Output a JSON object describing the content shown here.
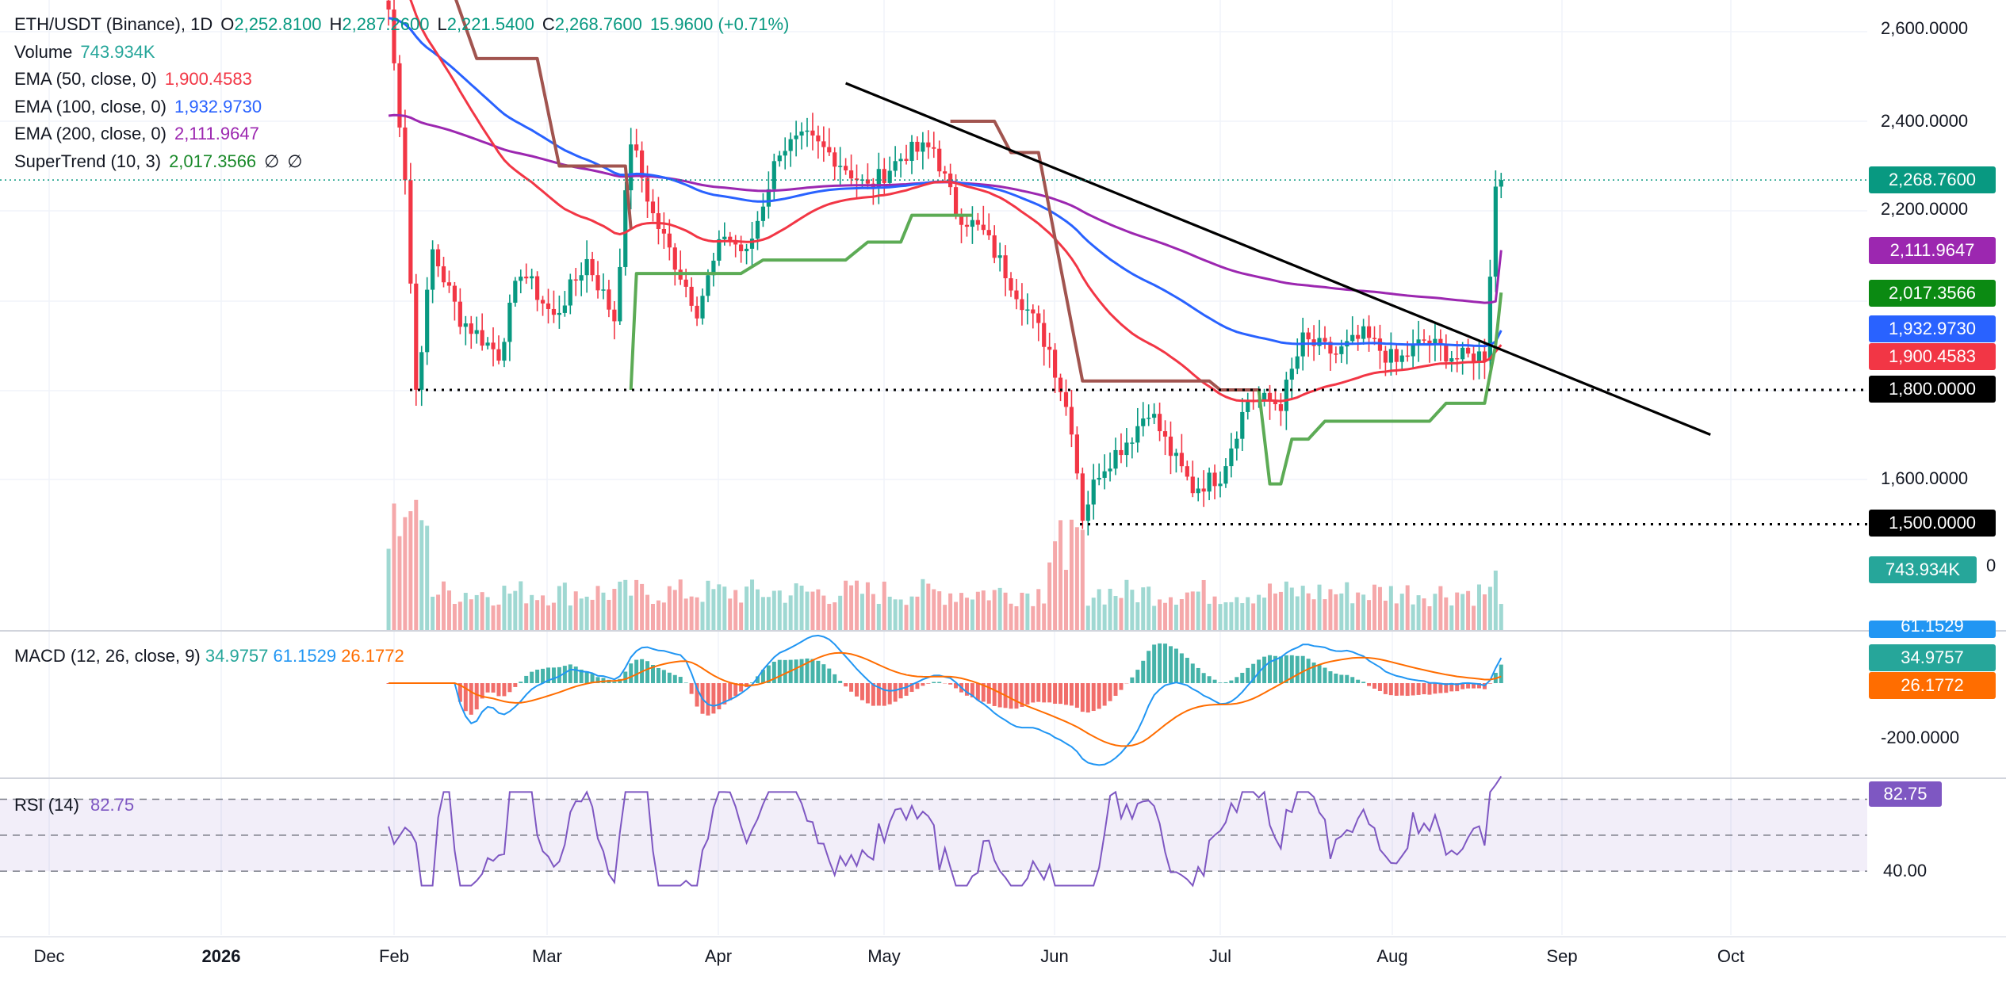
{
  "header": {
    "symbol": "ETH/USDT (Binance), 1D",
    "open_label": "O",
    "open": "2,252.8100",
    "high_label": "H",
    "high": "2,287.2600",
    "low_label": "L",
    "low": "2,221.5400",
    "close_label": "C",
    "close": "2,268.7600",
    "change": "15.9600 (+0.71%)"
  },
  "indicators": {
    "volume": {
      "label": "Volume",
      "value": "743.934K"
    },
    "ema50": {
      "label": "EMA (50, close, 0)",
      "value": "1,900.4583",
      "color": "#f23645"
    },
    "ema100": {
      "label": "EMA (100, close, 0)",
      "value": "1,932.9730",
      "color": "#2962ff"
    },
    "ema200": {
      "label": "EMA (200, close, 0)",
      "value": "2,111.9647",
      "color": "#9c27b0"
    },
    "supertrend": {
      "label": "SuperTrend (10, 3)",
      "value": "2,017.3566",
      "null1": "∅",
      "null2": "∅",
      "color": "#388e3c"
    },
    "macd": {
      "label": "MACD (12, 26, close, 9)",
      "hist": "34.9757",
      "macd": "61.1529",
      "signal": "26.1772"
    },
    "rsi": {
      "label": "RSI (14)",
      "value": "82.75"
    }
  },
  "price_axis": {
    "ticks": [
      "2,600.0000",
      "2,400.0000",
      "2,200.0000",
      "1,600.0000"
    ],
    "tags": {
      "close": "2,268.7600",
      "ema200": "2,111.9647",
      "supertrend": "2,017.3566",
      "ema100": "1,932.9730",
      "ema50": "1,900.4583",
      "support1": "1,800.0000",
      "support2": "1,500.0000",
      "volume": "743.934K"
    },
    "partial_label": "0"
  },
  "macd_axis": {
    "tick": "-200.0000",
    "tags": {
      "macd": "61.1529",
      "hist": "34.9757",
      "signal": "26.1772"
    }
  },
  "rsi_axis": {
    "tick": "40.00",
    "tag": "82.75"
  },
  "time_axis": {
    "labels": [
      "Dec",
      "2026",
      "Feb",
      "Mar",
      "Apr",
      "May",
      "Jun",
      "Jul",
      "Aug",
      "Sep",
      "Oct"
    ]
  },
  "colors": {
    "up": "#26a69a",
    "down": "#ef5350",
    "up_candle": "#089981",
    "down_candle": "#f23645",
    "supertrend_down": "#a1544f",
    "trendline": "#000000",
    "rsi": "#7e57c2",
    "macd": "#2196f3",
    "signal": "#ff6d00"
  },
  "chart_data": {
    "type": "candlestick",
    "title": "ETH/USDT (Binance), 1D",
    "y_range": [
      1440,
      2680
    ],
    "ohlc_last": {
      "open": 2252.81,
      "high": 2287.26,
      "low": 2221.54,
      "close": 2268.76
    },
    "price_path": [
      {
        "date": "2026-01-31",
        "price": 2650
      },
      {
        "date": "2026-02-03",
        "price": 2280
      },
      {
        "date": "2026-02-05",
        "price": 1800
      },
      {
        "date": "2026-02-08",
        "price": 2110
      },
      {
        "date": "2026-02-13",
        "price": 1960
      },
      {
        "date": "2026-02-20",
        "price": 1880
      },
      {
        "date": "2026-02-24",
        "price": 2070
      },
      {
        "date": "2026-03-02",
        "price": 1960
      },
      {
        "date": "2026-03-08",
        "price": 2090
      },
      {
        "date": "2026-03-13",
        "price": 1960
      },
      {
        "date": "2026-03-16",
        "price": 2360
      },
      {
        "date": "2026-03-20",
        "price": 2190
      },
      {
        "date": "2026-03-28",
        "price": 1980
      },
      {
        "date": "2026-04-02",
        "price": 2150
      },
      {
        "date": "2026-04-06",
        "price": 2100
      },
      {
        "date": "2026-04-12",
        "price": 2340
      },
      {
        "date": "2026-04-17",
        "price": 2360
      },
      {
        "date": "2026-04-22",
        "price": 2320
      },
      {
        "date": "2026-04-28",
        "price": 2250
      },
      {
        "date": "2026-05-05",
        "price": 2330
      },
      {
        "date": "2026-05-10",
        "price": 2340
      },
      {
        "date": "2026-05-14",
        "price": 2200
      },
      {
        "date": "2026-05-19",
        "price": 2150
      },
      {
        "date": "2026-05-26",
        "price": 2000
      },
      {
        "date": "2026-05-31",
        "price": 1890
      },
      {
        "date": "2026-06-04",
        "price": 1720
      },
      {
        "date": "2026-06-06",
        "price": 1520
      },
      {
        "date": "2026-06-09",
        "price": 1620
      },
      {
        "date": "2026-06-15",
        "price": 1700
      },
      {
        "date": "2026-06-18",
        "price": 1760
      },
      {
        "date": "2026-06-22",
        "price": 1660
      },
      {
        "date": "2026-06-26",
        "price": 1580
      },
      {
        "date": "2026-07-01",
        "price": 1610
      },
      {
        "date": "2026-07-06",
        "price": 1780
      },
      {
        "date": "2026-07-12",
        "price": 1770
      },
      {
        "date": "2026-07-16",
        "price": 1910
      },
      {
        "date": "2026-07-22",
        "price": 1880
      },
      {
        "date": "2026-07-27",
        "price": 1920
      },
      {
        "date": "2026-08-02",
        "price": 1860
      },
      {
        "date": "2026-08-07",
        "price": 1910
      },
      {
        "date": "2026-08-13",
        "price": 1870
      },
      {
        "date": "2026-08-18",
        "price": 1880
      },
      {
        "date": "2026-08-20",
        "price": 2252.81
      },
      {
        "date": "2026-08-21",
        "price": 2268.76
      }
    ],
    "horizontal_levels": [
      1800,
      1500
    ],
    "trendline": {
      "from": {
        "date": "2026-04-24",
        "price": 2485
      },
      "to": {
        "date": "2026-09-28",
        "price": 1700
      }
    },
    "ema50_end": 1900.4583,
    "ema100_end": 1932.973,
    "ema200_end": 2111.9647,
    "supertrend_end": 2017.3566,
    "volume_last": "743.934K",
    "macd": {
      "macd": 61.1529,
      "signal": 26.1772,
      "hist": 34.9757
    },
    "rsi": {
      "last": 82.75,
      "levels": [
        70,
        50,
        30
      ]
    },
    "x_labels": [
      "Dec",
      "2026",
      "Feb",
      "Mar",
      "Apr",
      "May",
      "Jun",
      "Jul",
      "Aug",
      "Sep",
      "Oct"
    ]
  }
}
